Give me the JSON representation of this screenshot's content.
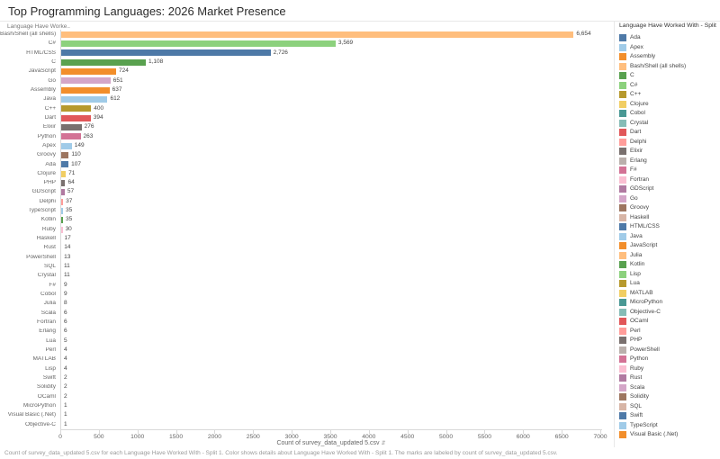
{
  "title": "Top Programming Languages: 2026 Market Presence",
  "row_axis_header": "Language Have Worke..",
  "x_axis": {
    "title": "Count of survey_data_updated 5.csv",
    "ticks": [
      0,
      500,
      1000,
      1500,
      2000,
      2500,
      3000,
      3500,
      4000,
      4500,
      5000,
      5500,
      6000,
      6500,
      7000
    ],
    "max": 7000
  },
  "legend": {
    "title": "Language Have Worked With - Split 1",
    "items": [
      {
        "label": "Ada",
        "color": "#4E79A7"
      },
      {
        "label": "Apex",
        "color": "#A0CBE8"
      },
      {
        "label": "Assembly",
        "color": "#F28E2B"
      },
      {
        "label": "Bash/Shell (all shells)",
        "color": "#FFBE7D"
      },
      {
        "label": "C",
        "color": "#59A14F"
      },
      {
        "label": "C#",
        "color": "#8CD17D"
      },
      {
        "label": "C++",
        "color": "#B6992D"
      },
      {
        "label": "Clojure",
        "color": "#F1CE63"
      },
      {
        "label": "Cobol",
        "color": "#499894"
      },
      {
        "label": "Crystal",
        "color": "#86BCB6"
      },
      {
        "label": "Dart",
        "color": "#E15759"
      },
      {
        "label": "Delphi",
        "color": "#FF9D9A"
      },
      {
        "label": "Elixir",
        "color": "#79706E"
      },
      {
        "label": "Erlang",
        "color": "#BAB0AC"
      },
      {
        "label": "F#",
        "color": "#D37295"
      },
      {
        "label": "Fortran",
        "color": "#FABFD2"
      },
      {
        "label": "GDScript",
        "color": "#B07AA1"
      },
      {
        "label": "Go",
        "color": "#D4A6C8"
      },
      {
        "label": "Groovy",
        "color": "#9D7660"
      },
      {
        "label": "Haskell",
        "color": "#D7B5A6"
      },
      {
        "label": "HTML/CSS",
        "color": "#4E79A7"
      },
      {
        "label": "Java",
        "color": "#A0CBE8"
      },
      {
        "label": "JavaScript",
        "color": "#F28E2B"
      },
      {
        "label": "Julia",
        "color": "#FFBE7D"
      },
      {
        "label": "Kotlin",
        "color": "#59A14F"
      },
      {
        "label": "Lisp",
        "color": "#8CD17D"
      },
      {
        "label": "Lua",
        "color": "#B6992D"
      },
      {
        "label": "MATLAB",
        "color": "#F1CE63"
      },
      {
        "label": "MicroPython",
        "color": "#499894"
      },
      {
        "label": "Objective-C",
        "color": "#86BCB6"
      },
      {
        "label": "OCaml",
        "color": "#E15759"
      },
      {
        "label": "Perl",
        "color": "#FF9D9A"
      },
      {
        "label": "PHP",
        "color": "#79706E"
      },
      {
        "label": "PowerShell",
        "color": "#BAB0AC"
      },
      {
        "label": "Python",
        "color": "#D37295"
      },
      {
        "label": "Ruby",
        "color": "#FABFD2"
      },
      {
        "label": "Rust",
        "color": "#B07AA1"
      },
      {
        "label": "Scala",
        "color": "#D4A6C8"
      },
      {
        "label": "Solidity",
        "color": "#9D7660"
      },
      {
        "label": "SQL",
        "color": "#D7B5A6"
      },
      {
        "label": "Swift",
        "color": "#4E79A7"
      },
      {
        "label": "TypeScript",
        "color": "#A0CBE8"
      },
      {
        "label": "Visual Basic (.Net)",
        "color": "#F28E2B"
      }
    ]
  },
  "chart_data": {
    "type": "bar",
    "orientation": "horizontal",
    "title": "Top Programming Languages: 2026 Market Presence",
    "xlabel": "Count of survey_data_updated 5.csv",
    "ylabel": "Language Have Worked With - Split 1",
    "xlim": [
      0,
      7000
    ],
    "grid": false,
    "legend_position": "right",
    "categories": [
      "Bash/Shell (all shells)",
      "C#",
      "HTML/CSS",
      "C",
      "JavaScript",
      "Go",
      "Assembly",
      "Java",
      "C++",
      "Dart",
      "Elixir",
      "Python",
      "Apex",
      "Groovy",
      "Ada",
      "Clojure",
      "PHP",
      "GDScript",
      "Delphi",
      "TypeScript",
      "Kotlin",
      "Ruby",
      "Haskell",
      "Rust",
      "PowerShell",
      "SQL",
      "Crystal",
      "F#",
      "Cobol",
      "Julia",
      "Scala",
      "Fortran",
      "Erlang",
      "Lua",
      "Perl",
      "MATLAB",
      "Lisp",
      "Swift",
      "Solidity",
      "OCaml",
      "MicroPython",
      "Visual Basic (.Net)",
      "Objective-C"
    ],
    "values": [
      6654,
      3569,
      2726,
      1108,
      724,
      651,
      637,
      612,
      400,
      394,
      276,
      263,
      149,
      110,
      107,
      71,
      64,
      57,
      37,
      35,
      35,
      30,
      17,
      14,
      13,
      11,
      11,
      9,
      9,
      8,
      6,
      6,
      6,
      5,
      4,
      4,
      4,
      2,
      2,
      2,
      1,
      1,
      1
    ],
    "labels": [
      "6,654",
      "3,569",
      "2,726",
      "1,108",
      "724",
      "651",
      "637",
      "612",
      "400",
      "394",
      "276",
      "263",
      "149",
      "110",
      "107",
      "71",
      "64",
      "57",
      "37",
      "35",
      "35",
      "30",
      "17",
      "14",
      "13",
      "11",
      "11",
      "9",
      "9",
      "8",
      "6",
      "6",
      "6",
      "5",
      "4",
      "4",
      "4",
      "2",
      "2",
      "2",
      "1",
      "1",
      "1"
    ]
  },
  "sort_icon": "⇵",
  "caption": "Count of survey_data_updated 5.csv for each Language Have Worked With - Split 1.  Color shows details about Language Have Worked With - Split 1.  The marks are labeled by count of survey_data_updated 5.csv."
}
